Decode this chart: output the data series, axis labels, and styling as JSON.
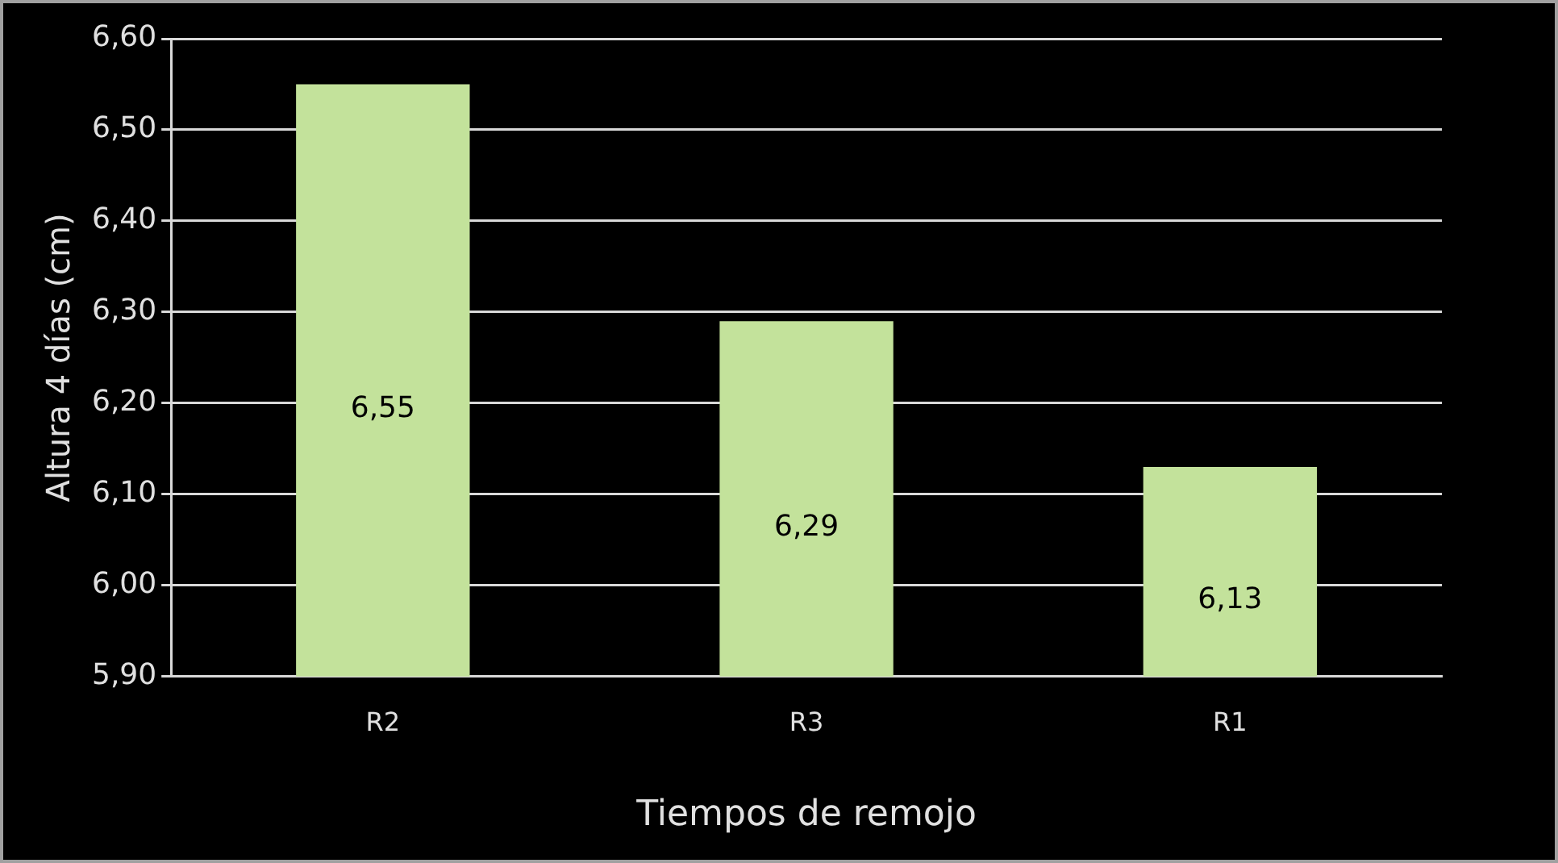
{
  "chart_data": {
    "type": "bar",
    "xlabel": "Tiempos de remojo",
    "ylabel": "Altura 4 días (cm)",
    "categories": [
      "R2",
      "R3",
      "R1"
    ],
    "values": [
      6.55,
      6.29,
      6.13
    ],
    "value_labels": [
      "6,55",
      "6,29",
      "6,13"
    ],
    "color": "#c3e29b",
    "ylim": [
      5.9,
      6.6
    ],
    "yticks": [
      {
        "value": 5.9,
        "label": "5,90"
      },
      {
        "value": 6.0,
        "label": "6,00"
      },
      {
        "value": 6.1,
        "label": "6,10"
      },
      {
        "value": 6.2,
        "label": "6,20"
      },
      {
        "value": 6.3,
        "label": "6,30"
      },
      {
        "value": 6.4,
        "label": "6,40"
      },
      {
        "value": 6.5,
        "label": "6,50"
      },
      {
        "value": 6.6,
        "label": "6,60"
      }
    ],
    "grid": "y",
    "legend": false
  }
}
